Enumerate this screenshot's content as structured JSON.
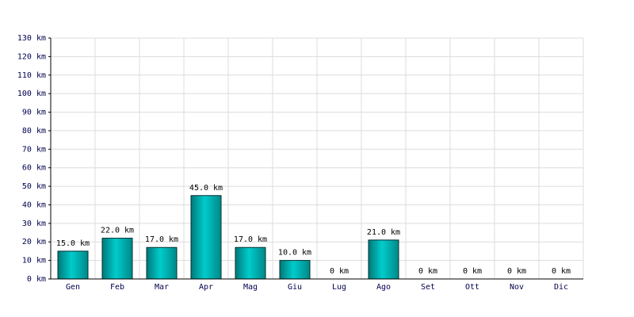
{
  "chart_data": {
    "type": "bar",
    "categories": [
      "Gen",
      "Feb",
      "Mar",
      "Apr",
      "Mag",
      "Giu",
      "Lug",
      "Ago",
      "Set",
      "Ott",
      "Nov",
      "Dic"
    ],
    "values": [
      15,
      22,
      17,
      45,
      17,
      10,
      0,
      21,
      0,
      0,
      0,
      0
    ],
    "value_labels": [
      "15.0 km",
      "22.0 km",
      "17.0 km",
      "45.0 km",
      "17.0 km",
      "10.0 km",
      "0 km",
      "21.0 km",
      "0 km",
      "0 km",
      "0 km",
      "0 km"
    ],
    "color": "#00cccc",
    "ylim": [
      0,
      130
    ],
    "yticks": [
      {
        "value": 0,
        "label": "0 km"
      },
      {
        "value": 10,
        "label": "10 km"
      },
      {
        "value": 20,
        "label": "20 km"
      },
      {
        "value": 30,
        "label": "30 km"
      },
      {
        "value": 40,
        "label": "40 km"
      },
      {
        "value": 50,
        "label": "50 km"
      },
      {
        "value": 60,
        "label": "60 km"
      },
      {
        "value": 70,
        "label": "70 km"
      },
      {
        "value": 80,
        "label": "80 km"
      },
      {
        "value": 90,
        "label": "90 km"
      },
      {
        "value": 100,
        "label": "100 km"
      },
      {
        "value": 110,
        "label": "110 km"
      },
      {
        "value": 120,
        "label": "120 km"
      },
      {
        "value": 130,
        "label": "130 km"
      }
    ],
    "grid": true
  }
}
